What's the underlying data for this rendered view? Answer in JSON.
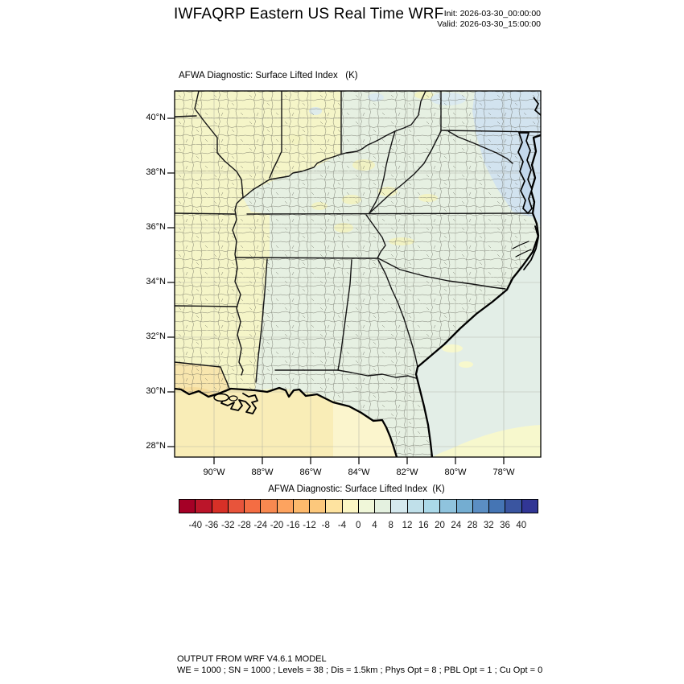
{
  "header": {
    "title": "IWFAQRP Eastern US Real Time WRF",
    "init_label": "Init: 2026-03-30_00:00:00",
    "valid_label": "Valid: 2026-03-30_15:00:00"
  },
  "map": {
    "subtitle": "AFWA Diagnostic: Surface Lifted Index   (K)",
    "lat_tick_labels": [
      "40°N",
      "38°N",
      "36°N",
      "34°N",
      "32°N",
      "30°N",
      "28°N"
    ],
    "lon_tick_labels": [
      "90°W",
      "88°W",
      "86°W",
      "84°W",
      "82°W",
      "80°W",
      "78°W"
    ],
    "fill_colors": {
      "land_slightly_unstable": "#f5f5c8",
      "land_stable": "#e6f0e2",
      "gulf_water": "#f9edb7",
      "atlantic_water": "#e3eee7",
      "chesapeake_tint": "#cfe1f1",
      "louisiana_tint": "#f8e6ae"
    }
  },
  "colorbar": {
    "title": "AFWA Diagnostic: Surface Lifted Index  (K)",
    "units": "K",
    "tick_labels": [
      "-40",
      "-36",
      "-32",
      "-28",
      "-24",
      "-20",
      "-16",
      "-12",
      "-8",
      "-4",
      "0",
      "4",
      "8",
      "12",
      "16",
      "20",
      "24",
      "28",
      "32",
      "36",
      "40"
    ],
    "tick_values": [
      -40,
      -36,
      -32,
      -28,
      -24,
      -20,
      -16,
      -12,
      -8,
      -4,
      0,
      4,
      8,
      12,
      16,
      20,
      24,
      28,
      32,
      36,
      40
    ],
    "colors": [
      "#a50026",
      "#bb152a",
      "#d73027",
      "#e8543b",
      "#f46d43",
      "#f88950",
      "#fda35f",
      "#fdb96c",
      "#fcc87c",
      "#fee3a0",
      "#fcf6c4",
      "#f0f7d9",
      "#e4f1e0",
      "#d5e9ee",
      "#c0e0ea",
      "#abd9e9",
      "#8fc3dd",
      "#74add1",
      "#5b8ec3",
      "#4575b4",
      "#3a55a0",
      "#313695"
    ]
  },
  "footer": {
    "line1": "OUTPUT FROM WRF V4.6.1 MODEL",
    "line2": "WE = 1000 ; SN = 1000 ; Levels = 38 ; Dis = 1.5km ; Phys Opt = 8 ; PBL Opt = 1 ; Cu Opt = 0"
  }
}
